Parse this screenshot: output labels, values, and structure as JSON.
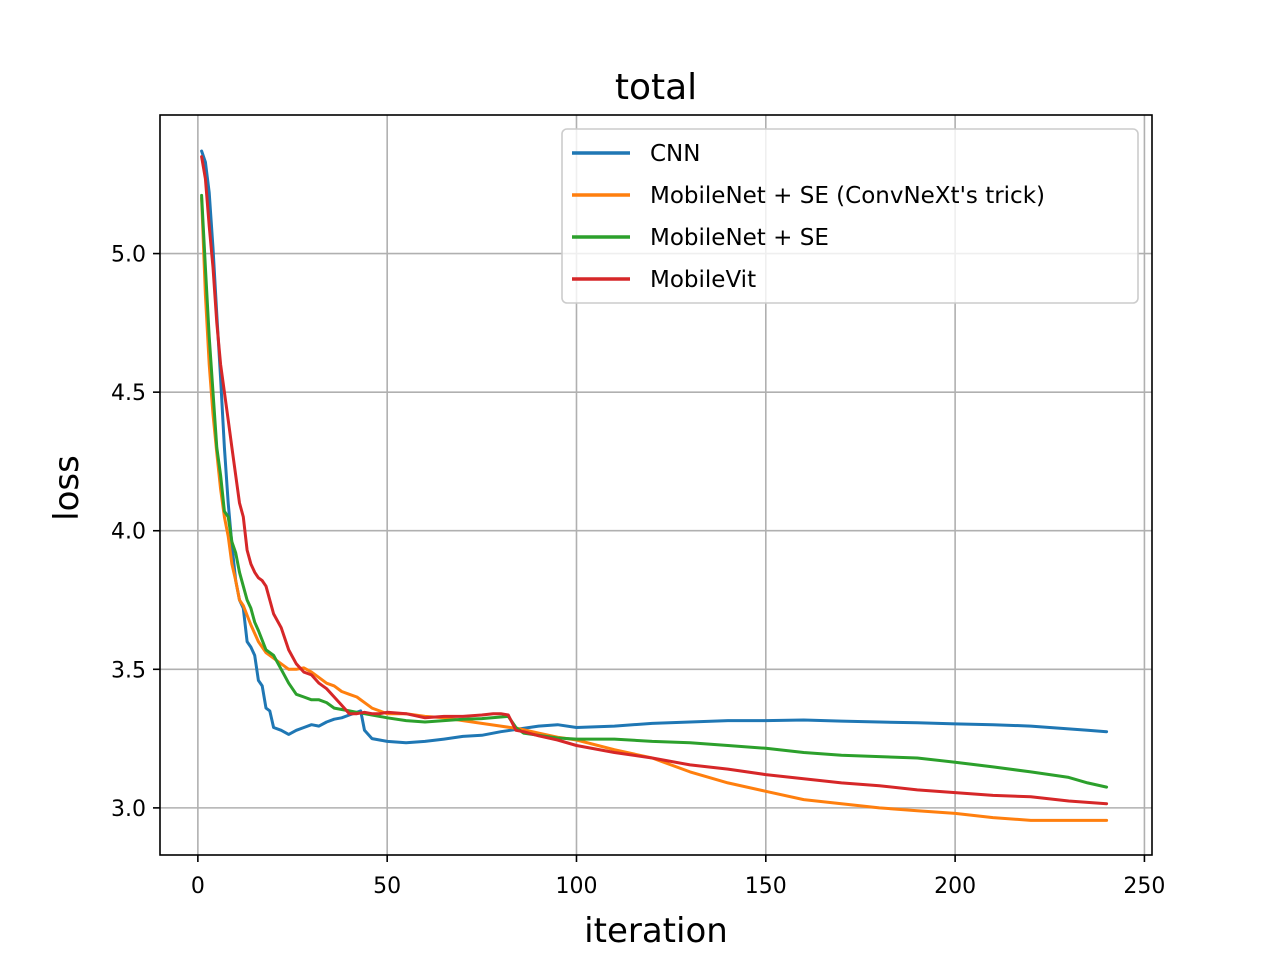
{
  "chart_data": {
    "type": "line",
    "title": "total",
    "xlabel": "iteration",
    "ylabel": "loss",
    "xlim": [
      -10,
      252
    ],
    "ylim": [
      2.83,
      5.5
    ],
    "xticks": [
      0,
      50,
      100,
      150,
      200,
      250
    ],
    "yticks": [
      3.0,
      3.5,
      4.0,
      4.5,
      5.0
    ],
    "ytick_labels": [
      "3.0",
      "3.5",
      "4.0",
      "4.5",
      "5.0"
    ],
    "grid": true,
    "legend_position": "top-right",
    "series": [
      {
        "name": "CNN",
        "color": "#1f77b4",
        "points": [
          [
            1,
            5.37
          ],
          [
            2,
            5.33
          ],
          [
            3,
            5.22
          ],
          [
            4,
            5.02
          ],
          [
            5,
            4.78
          ],
          [
            6,
            4.55
          ],
          [
            7,
            4.3
          ],
          [
            8,
            4.1
          ],
          [
            9,
            3.95
          ],
          [
            10,
            3.82
          ],
          [
            11,
            3.75
          ],
          [
            12,
            3.72
          ],
          [
            13,
            3.6
          ],
          [
            14,
            3.58
          ],
          [
            15,
            3.55
          ],
          [
            16,
            3.46
          ],
          [
            17,
            3.44
          ],
          [
            18,
            3.36
          ],
          [
            19,
            3.35
          ],
          [
            20,
            3.29
          ],
          [
            22,
            3.28
          ],
          [
            24,
            3.265
          ],
          [
            26,
            3.28
          ],
          [
            28,
            3.29
          ],
          [
            30,
            3.3
          ],
          [
            32,
            3.295
          ],
          [
            34,
            3.31
          ],
          [
            36,
            3.32
          ],
          [
            38,
            3.325
          ],
          [
            40,
            3.335
          ],
          [
            42,
            3.345
          ],
          [
            43,
            3.35
          ],
          [
            44,
            3.28
          ],
          [
            46,
            3.25
          ],
          [
            48,
            3.245
          ],
          [
            50,
            3.24
          ],
          [
            55,
            3.235
          ],
          [
            60,
            3.24
          ],
          [
            65,
            3.248
          ],
          [
            70,
            3.258
          ],
          [
            75,
            3.262
          ],
          [
            80,
            3.275
          ],
          [
            85,
            3.285
          ],
          [
            90,
            3.295
          ],
          [
            95,
            3.3
          ],
          [
            100,
            3.29
          ],
          [
            110,
            3.295
          ],
          [
            120,
            3.305
          ],
          [
            130,
            3.31
          ],
          [
            140,
            3.315
          ],
          [
            150,
            3.315
          ],
          [
            160,
            3.317
          ],
          [
            170,
            3.313
          ],
          [
            180,
            3.31
          ],
          [
            190,
            3.307
          ],
          [
            200,
            3.303
          ],
          [
            210,
            3.3
          ],
          [
            220,
            3.295
          ],
          [
            230,
            3.285
          ],
          [
            235,
            3.28
          ],
          [
            240,
            3.275
          ]
        ]
      },
      {
        "name": "MobileNet + SE (ConvNeXt's trick)",
        "color": "#ff7f0e",
        "points": [
          [
            1,
            5.2
          ],
          [
            2,
            4.85
          ],
          [
            3,
            4.6
          ],
          [
            4,
            4.42
          ],
          [
            5,
            4.28
          ],
          [
            6,
            4.15
          ],
          [
            7,
            4.05
          ],
          [
            8,
            3.98
          ],
          [
            9,
            3.88
          ],
          [
            10,
            3.82
          ],
          [
            11,
            3.75
          ],
          [
            12,
            3.73
          ],
          [
            14,
            3.66
          ],
          [
            16,
            3.6
          ],
          [
            18,
            3.56
          ],
          [
            20,
            3.54
          ],
          [
            22,
            3.52
          ],
          [
            24,
            3.5
          ],
          [
            26,
            3.5
          ],
          [
            28,
            3.505
          ],
          [
            30,
            3.49
          ],
          [
            32,
            3.47
          ],
          [
            34,
            3.45
          ],
          [
            36,
            3.44
          ],
          [
            38,
            3.42
          ],
          [
            40,
            3.41
          ],
          [
            42,
            3.4
          ],
          [
            44,
            3.38
          ],
          [
            46,
            3.36
          ],
          [
            48,
            3.35
          ],
          [
            50,
            3.34
          ],
          [
            55,
            3.34
          ],
          [
            60,
            3.33
          ],
          [
            65,
            3.325
          ],
          [
            70,
            3.315
          ],
          [
            75,
            3.305
          ],
          [
            80,
            3.295
          ],
          [
            85,
            3.285
          ],
          [
            90,
            3.27
          ],
          [
            95,
            3.255
          ],
          [
            100,
            3.245
          ],
          [
            110,
            3.21
          ],
          [
            120,
            3.18
          ],
          [
            130,
            3.13
          ],
          [
            140,
            3.09
          ],
          [
            150,
            3.06
          ],
          [
            160,
            3.03
          ],
          [
            170,
            3.015
          ],
          [
            180,
            3.0
          ],
          [
            190,
            2.99
          ],
          [
            200,
            2.98
          ],
          [
            210,
            2.965
          ],
          [
            220,
            2.955
          ],
          [
            230,
            2.955
          ],
          [
            240,
            2.955
          ]
        ]
      },
      {
        "name": "MobileNet + SE",
        "color": "#2ca02c",
        "points": [
          [
            1,
            5.21
          ],
          [
            2,
            4.95
          ],
          [
            3,
            4.7
          ],
          [
            4,
            4.5
          ],
          [
            5,
            4.3
          ],
          [
            6,
            4.2
          ],
          [
            7,
            4.07
          ],
          [
            8,
            4.05
          ],
          [
            9,
            3.96
          ],
          [
            10,
            3.92
          ],
          [
            11,
            3.85
          ],
          [
            12,
            3.8
          ],
          [
            13,
            3.75
          ],
          [
            14,
            3.72
          ],
          [
            15,
            3.67
          ],
          [
            16,
            3.64
          ],
          [
            18,
            3.57
          ],
          [
            20,
            3.55
          ],
          [
            22,
            3.5
          ],
          [
            24,
            3.45
          ],
          [
            26,
            3.41
          ],
          [
            28,
            3.4
          ],
          [
            30,
            3.39
          ],
          [
            32,
            3.39
          ],
          [
            34,
            3.38
          ],
          [
            36,
            3.36
          ],
          [
            38,
            3.355
          ],
          [
            40,
            3.35
          ],
          [
            42,
            3.345
          ],
          [
            44,
            3.34
          ],
          [
            46,
            3.335
          ],
          [
            48,
            3.33
          ],
          [
            50,
            3.325
          ],
          [
            55,
            3.315
          ],
          [
            60,
            3.31
          ],
          [
            65,
            3.315
          ],
          [
            70,
            3.32
          ],
          [
            75,
            3.322
          ],
          [
            80,
            3.328
          ],
          [
            82,
            3.33
          ],
          [
            84,
            3.29
          ],
          [
            86,
            3.27
          ],
          [
            90,
            3.262
          ],
          [
            95,
            3.252
          ],
          [
            100,
            3.248
          ],
          [
            110,
            3.248
          ],
          [
            120,
            3.24
          ],
          [
            130,
            3.235
          ],
          [
            140,
            3.225
          ],
          [
            150,
            3.215
          ],
          [
            160,
            3.2
          ],
          [
            170,
            3.19
          ],
          [
            180,
            3.185
          ],
          [
            190,
            3.18
          ],
          [
            200,
            3.165
          ],
          [
            210,
            3.148
          ],
          [
            220,
            3.13
          ],
          [
            230,
            3.11
          ],
          [
            235,
            3.09
          ],
          [
            240,
            3.075
          ]
        ]
      },
      {
        "name": "MobileVit",
        "color": "#d62728",
        "points": [
          [
            1,
            5.35
          ],
          [
            2,
            5.27
          ],
          [
            3,
            5.1
          ],
          [
            4,
            4.95
          ],
          [
            5,
            4.75
          ],
          [
            6,
            4.6
          ],
          [
            7,
            4.5
          ],
          [
            8,
            4.4
          ],
          [
            9,
            4.3
          ],
          [
            10,
            4.2
          ],
          [
            11,
            4.1
          ],
          [
            12,
            4.05
          ],
          [
            13,
            3.93
          ],
          [
            14,
            3.88
          ],
          [
            15,
            3.85
          ],
          [
            16,
            3.83
          ],
          [
            17,
            3.82
          ],
          [
            18,
            3.8
          ],
          [
            19,
            3.75
          ],
          [
            20,
            3.7
          ],
          [
            22,
            3.65
          ],
          [
            24,
            3.57
          ],
          [
            26,
            3.52
          ],
          [
            28,
            3.49
          ],
          [
            30,
            3.48
          ],
          [
            32,
            3.45
          ],
          [
            34,
            3.43
          ],
          [
            36,
            3.4
          ],
          [
            38,
            3.37
          ],
          [
            40,
            3.34
          ],
          [
            42,
            3.34
          ],
          [
            44,
            3.345
          ],
          [
            46,
            3.34
          ],
          [
            48,
            3.34
          ],
          [
            50,
            3.345
          ],
          [
            55,
            3.34
          ],
          [
            60,
            3.325
          ],
          [
            65,
            3.33
          ],
          [
            70,
            3.33
          ],
          [
            75,
            3.335
          ],
          [
            78,
            3.34
          ],
          [
            80,
            3.34
          ],
          [
            82,
            3.335
          ],
          [
            84,
            3.28
          ],
          [
            86,
            3.275
          ],
          [
            90,
            3.26
          ],
          [
            95,
            3.245
          ],
          [
            100,
            3.225
          ],
          [
            110,
            3.2
          ],
          [
            120,
            3.18
          ],
          [
            130,
            3.155
          ],
          [
            140,
            3.14
          ],
          [
            150,
            3.12
          ],
          [
            160,
            3.105
          ],
          [
            170,
            3.09
          ],
          [
            180,
            3.08
          ],
          [
            190,
            3.065
          ],
          [
            200,
            3.055
          ],
          [
            210,
            3.045
          ],
          [
            220,
            3.04
          ],
          [
            230,
            3.025
          ],
          [
            240,
            3.015
          ]
        ]
      }
    ]
  }
}
